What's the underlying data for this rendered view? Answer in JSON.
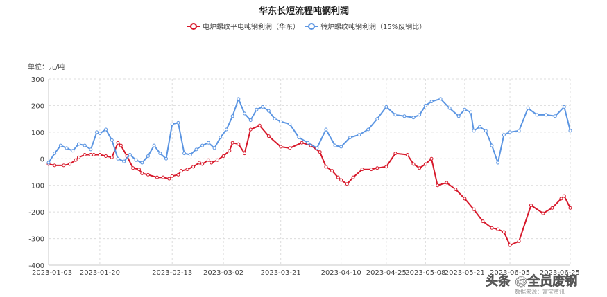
{
  "chart_data": {
    "type": "line",
    "title": "华东长短流程吨钢利润",
    "unit_label": "单位：元/吨",
    "ylim": [
      -400,
      300
    ],
    "yticks": [
      -400,
      -300,
      -200,
      -100,
      0,
      100,
      200,
      300
    ],
    "x_dates": [
      "2023-01-03",
      "2023-01-20",
      "2023-02-13",
      "2023-03-02",
      "2023-03-21",
      "2023-04-10",
      "2023-04-25",
      "2023-05-08",
      "2023-05-21",
      "2023-06-05",
      "2023-06-25"
    ],
    "grid": true,
    "legend_position": "top",
    "series": [
      {
        "name": "电炉螺纹平电吨钢利润（华东）",
        "color": "#d7182a",
        "x": [
          "2023-01-03",
          "2023-01-05",
          "2023-01-08",
          "2023-01-10",
          "2023-01-12",
          "2023-01-13",
          "2023-01-15",
          "2023-01-17",
          "2023-01-18",
          "2023-01-20",
          "2023-01-22",
          "2023-01-24",
          "2023-01-26",
          "2023-01-27",
          "2023-01-29",
          "2023-01-31",
          "2023-02-02",
          "2023-02-03",
          "2023-02-05",
          "2023-02-08",
          "2023-02-10",
          "2023-02-12",
          "2023-02-13",
          "2023-02-15",
          "2023-02-16",
          "2023-02-18",
          "2023-02-20",
          "2023-02-22",
          "2023-02-23",
          "2023-02-25",
          "2023-02-26",
          "2023-02-28",
          "2023-03-02",
          "2023-03-04",
          "2023-03-05",
          "2023-03-07",
          "2023-03-09",
          "2023-03-11",
          "2023-03-14",
          "2023-03-17",
          "2023-03-21",
          "2023-03-24",
          "2023-03-28",
          "2023-03-31",
          "2023-04-03",
          "2023-04-05",
          "2023-04-07",
          "2023-04-09",
          "2023-04-10",
          "2023-04-12",
          "2023-04-14",
          "2023-04-17",
          "2023-04-20",
          "2023-04-22",
          "2023-04-25",
          "2023-04-28",
          "2023-05-02",
          "2023-05-04",
          "2023-05-06",
          "2023-05-08",
          "2023-05-10",
          "2023-05-12",
          "2023-05-15",
          "2023-05-18",
          "2023-05-21",
          "2023-05-24",
          "2023-05-27",
          "2023-05-30",
          "2023-06-01",
          "2023-06-03",
          "2023-06-05",
          "2023-06-08",
          "2023-06-12",
          "2023-06-16",
          "2023-06-19",
          "2023-06-22",
          "2023-06-23",
          "2023-06-25"
        ],
        "y": [
          -20,
          -25,
          -25,
          -20,
          -5,
          5,
          15,
          15,
          15,
          15,
          10,
          5,
          60,
          50,
          10,
          -35,
          -40,
          -55,
          -60,
          -70,
          -70,
          -75,
          -65,
          -60,
          -45,
          -40,
          -30,
          -15,
          -20,
          -5,
          -15,
          -5,
          10,
          30,
          60,
          55,
          20,
          110,
          125,
          85,
          45,
          40,
          60,
          50,
          25,
          -30,
          -45,
          -70,
          -80,
          -95,
          -70,
          -40,
          -40,
          -35,
          -30,
          20,
          15,
          -20,
          -35,
          -20,
          0,
          -100,
          -90,
          -115,
          -150,
          -190,
          -235,
          -260,
          -265,
          -275,
          -325,
          -310,
          -175,
          -205,
          -185,
          -150,
          -140,
          -185
        ]
      },
      {
        "name": "转炉螺纹吨钢利润（15%废钢比）",
        "color": "#5b95e2",
        "x": [
          "2023-01-03",
          "2023-01-05",
          "2023-01-07",
          "2023-01-09",
          "2023-01-11",
          "2023-01-13",
          "2023-01-15",
          "2023-01-17",
          "2023-01-19",
          "2023-01-20",
          "2023-01-22",
          "2023-01-24",
          "2023-01-26",
          "2023-01-28",
          "2023-01-30",
          "2023-02-01",
          "2023-02-03",
          "2023-02-05",
          "2023-02-07",
          "2023-02-09",
          "2023-02-11",
          "2023-02-13",
          "2023-02-15",
          "2023-02-17",
          "2023-02-19",
          "2023-02-21",
          "2023-02-23",
          "2023-02-25",
          "2023-02-27",
          "2023-03-01",
          "2023-03-03",
          "2023-03-05",
          "2023-03-07",
          "2023-03-09",
          "2023-03-11",
          "2023-03-13",
          "2023-03-15",
          "2023-03-17",
          "2023-03-19",
          "2023-03-21",
          "2023-03-24",
          "2023-03-27",
          "2023-03-30",
          "2023-04-02",
          "2023-04-05",
          "2023-04-08",
          "2023-04-10",
          "2023-04-13",
          "2023-04-16",
          "2023-04-19",
          "2023-04-22",
          "2023-04-25",
          "2023-04-28",
          "2023-05-01",
          "2023-05-04",
          "2023-05-06",
          "2023-05-08",
          "2023-05-10",
          "2023-05-13",
          "2023-05-16",
          "2023-05-19",
          "2023-05-21",
          "2023-05-23",
          "2023-05-24",
          "2023-05-26",
          "2023-05-28",
          "2023-05-30",
          "2023-06-01",
          "2023-06-03",
          "2023-06-05",
          "2023-06-08",
          "2023-06-11",
          "2023-06-14",
          "2023-06-17",
          "2023-06-20",
          "2023-06-23",
          "2023-06-25"
        ],
        "y": [
          -15,
          20,
          50,
          40,
          30,
          55,
          50,
          35,
          100,
          95,
          110,
          70,
          0,
          -10,
          15,
          -5,
          -15,
          10,
          50,
          20,
          0,
          130,
          135,
          20,
          15,
          35,
          50,
          60,
          40,
          80,
          110,
          160,
          225,
          170,
          145,
          185,
          195,
          180,
          150,
          140,
          130,
          80,
          60,
          40,
          110,
          50,
          45,
          80,
          90,
          110,
          150,
          195,
          165,
          160,
          155,
          165,
          200,
          215,
          225,
          190,
          160,
          185,
          175,
          105,
          120,
          105,
          50,
          -15,
          90,
          100,
          105,
          190,
          165,
          165,
          160,
          195,
          105
        ]
      }
    ]
  },
  "watermark": {
    "main": "头条 @全员废钢",
    "source": "数据来源：富宝资讯"
  }
}
